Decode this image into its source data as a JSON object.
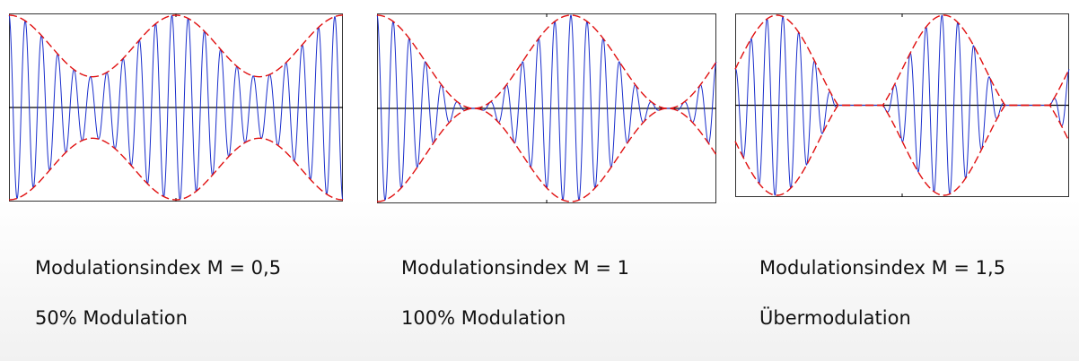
{
  "chart_data": [
    {
      "type": "line",
      "modulation_index": 0.5,
      "x_range": [
        0,
        1
      ],
      "y_range": [
        -1,
        1
      ],
      "envelope_cycles": 2,
      "envelope_phase": "cos",
      "carrier_cycles": 20.5,
      "envelope_visible_mode": "abs",
      "colors": {
        "carrier": "#1a2ecc",
        "envelope": "#e01010",
        "axis": "#000000"
      },
      "title_line1": "Modulationsindex M = 0,5",
      "title_line2": "50% Modulation"
    },
    {
      "type": "line",
      "modulation_index": 1,
      "x_range": [
        0,
        1
      ],
      "y_range": [
        -1,
        1
      ],
      "envelope_cycles": 1.75,
      "envelope_phase": "cos",
      "carrier_cycles": 21,
      "envelope_visible_mode": "abs",
      "colors": {
        "carrier": "#1a2ecc",
        "envelope": "#e01010",
        "axis": "#000000"
      },
      "title_line1": "Modulationsindex M = 1",
      "title_line2": "100% Modulation"
    },
    {
      "type": "line",
      "modulation_index": 1.5,
      "x_range": [
        0,
        1
      ],
      "y_range": [
        -1,
        1
      ],
      "envelope_cycles": 2,
      "envelope_phase": "sin",
      "carrier_cycles": 21,
      "envelope_visible_mode": "clip",
      "colors": {
        "carrier": "#1a2ecc",
        "envelope": "#e01010",
        "axis": "#000000"
      },
      "title_line1": "Modulationsindex M = 1,5",
      "title_line2": "Übermodulation"
    }
  ]
}
